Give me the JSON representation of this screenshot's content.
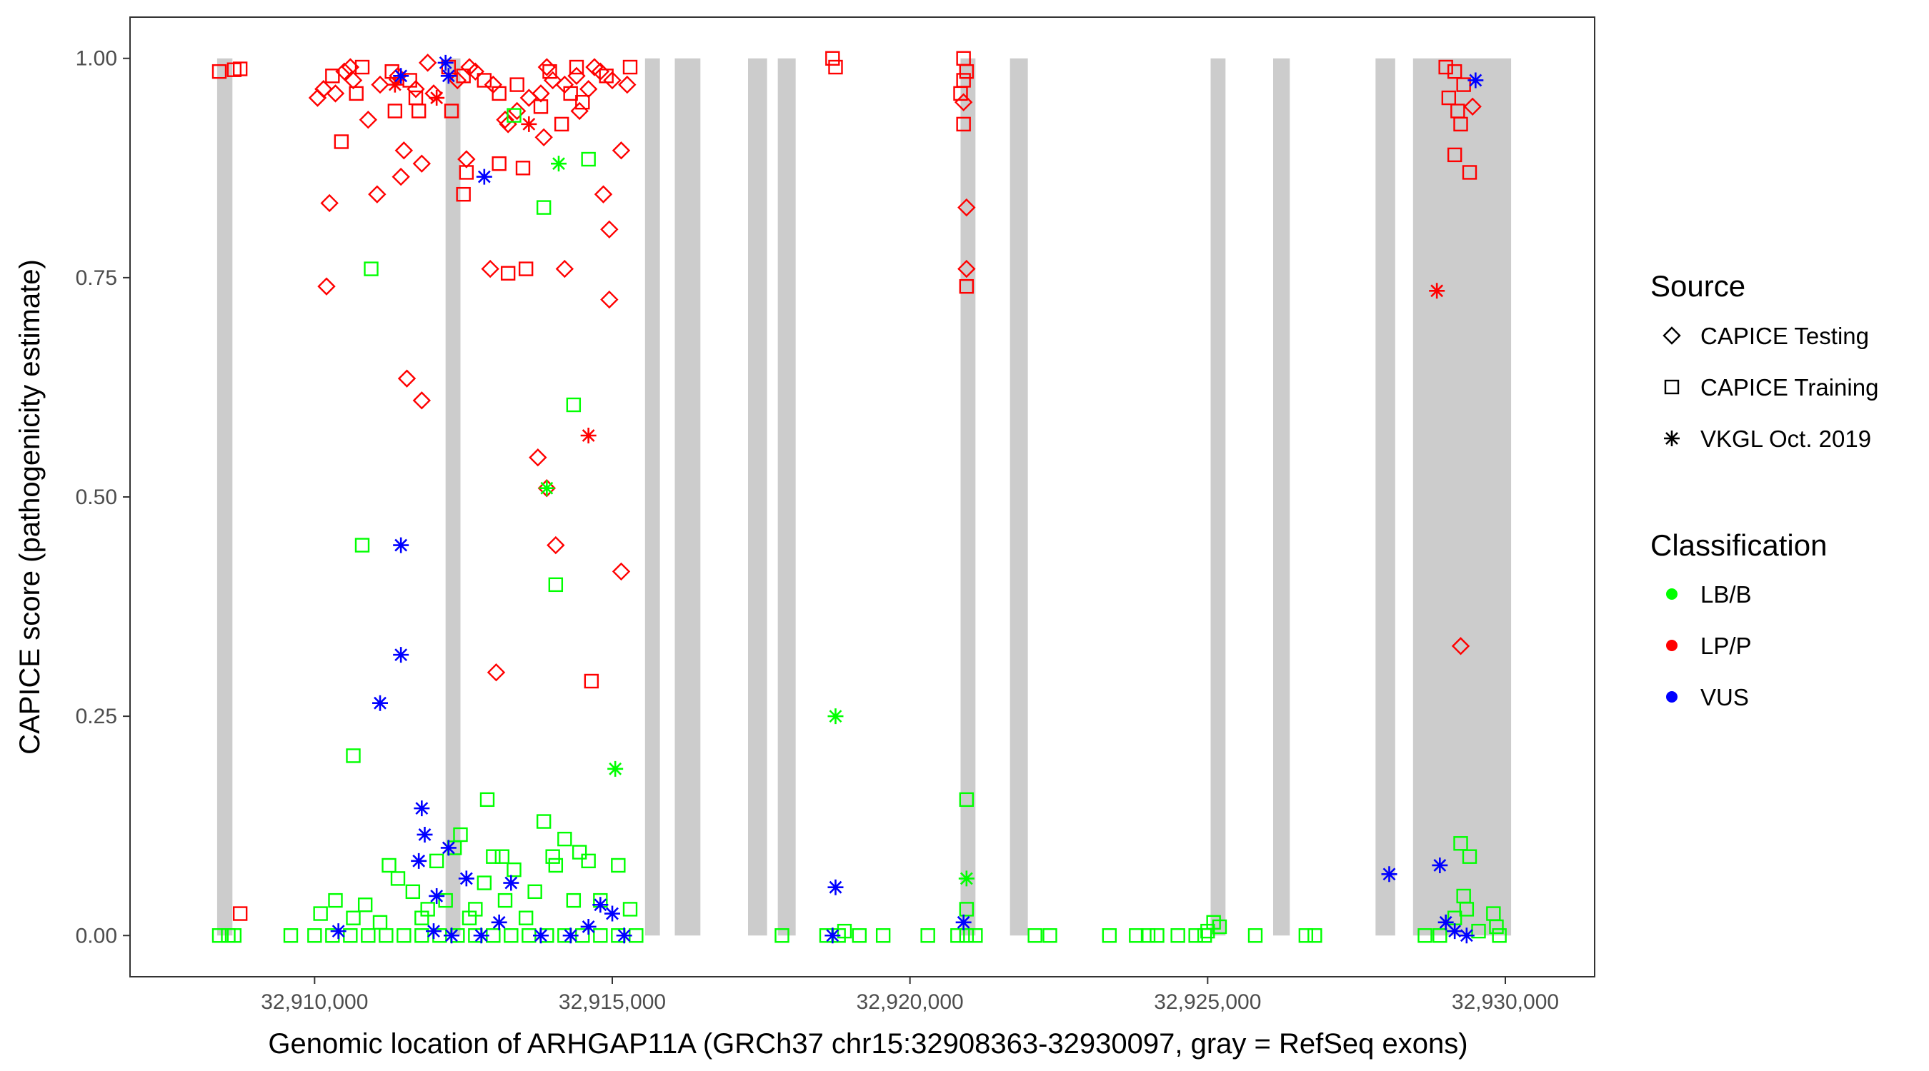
{
  "chart_data": {
    "type": "scatter",
    "title": "",
    "xlabel": "Genomic location of ARHGAP11A (GRCh37 chr15:32908363-32930097, gray = RefSeq exons)",
    "ylabel": "CAPICE score (pathogenicity estimate)",
    "xlim": [
      32906900,
      32931500
    ],
    "ylim": [
      -0.047,
      1.047
    ],
    "x_ticks": [
      32910000,
      32915000,
      32920000,
      32925000,
      32930000
    ],
    "x_tick_labels": [
      "32,910,000",
      "32,915,000",
      "32,920,000",
      "32,925,000",
      "32,930,000"
    ],
    "y_ticks": [
      0,
      0.25,
      0.5,
      0.75,
      1
    ],
    "y_tick_labels": [
      "0.00",
      "0.25",
      "0.50",
      "0.75",
      "1.00"
    ],
    "grid": false,
    "exons": [
      [
        32908363,
        32908620
      ],
      [
        32912200,
        32912450
      ],
      [
        32915550,
        32915800
      ],
      [
        32916050,
        32916480
      ],
      [
        32917280,
        32917600
      ],
      [
        32917780,
        32918080
      ],
      [
        32920850,
        32921100
      ],
      [
        32921680,
        32921980
      ],
      [
        32925050,
        32925300
      ],
      [
        32926100,
        32926380
      ],
      [
        32927820,
        32928150
      ],
      [
        32928450,
        32930097
      ]
    ],
    "legend": {
      "position": "right",
      "source_title": "Source",
      "source_items": [
        {
          "label": "CAPICE Testing",
          "shape": "diamond"
        },
        {
          "label": "CAPICE Training",
          "shape": "square"
        },
        {
          "label": "VKGL Oct. 2019",
          "shape": "asterisk"
        }
      ],
      "class_title": "Classification",
      "class_items": [
        {
          "label": "LB/B",
          "color": "#00ff00"
        },
        {
          "label": "LP/P",
          "color": "#ff0000"
        },
        {
          "label": "VUS",
          "color": "#0000ff"
        }
      ]
    },
    "colors": {
      "LB/B": "#00ff00",
      "LP/P": "#ff0000",
      "VUS": "#0000ff",
      "exon": "#cccccc"
    },
    "series": [
      {
        "source": "CAPICE Testing",
        "classification": "LP/P",
        "points": [
          [
            32910050,
            0.955
          ],
          [
            32910150,
            0.965
          ],
          [
            32910350,
            0.96
          ],
          [
            32910500,
            0.985
          ],
          [
            32910650,
            0.975
          ],
          [
            32910900,
            0.93
          ],
          [
            32911100,
            0.97
          ],
          [
            32911400,
            0.98
          ],
          [
            32911700,
            0.965
          ],
          [
            32912000,
            0.96
          ],
          [
            32912400,
            0.975
          ],
          [
            32912700,
            0.985
          ],
          [
            32913000,
            0.97
          ],
          [
            32913200,
            0.93
          ],
          [
            32913400,
            0.94
          ],
          [
            32913600,
            0.955
          ],
          [
            32913800,
            0.96
          ],
          [
            32914000,
            0.975
          ],
          [
            32914200,
            0.97
          ],
          [
            32914400,
            0.98
          ],
          [
            32914600,
            0.965
          ],
          [
            32914800,
            0.985
          ],
          [
            32915000,
            0.975
          ],
          [
            32915250,
            0.97
          ],
          [
            32910600,
            0.99
          ],
          [
            32911900,
            0.995
          ],
          [
            32912600,
            0.99
          ],
          [
            32913900,
            0.99
          ],
          [
            32914700,
            0.99
          ],
          [
            32913850,
            0.91
          ],
          [
            32913250,
            0.925
          ],
          [
            32914450,
            0.94
          ],
          [
            32911500,
            0.895
          ],
          [
            32911450,
            0.865
          ],
          [
            32911800,
            0.88
          ],
          [
            32912550,
            0.885
          ],
          [
            32915150,
            0.895
          ],
          [
            32910250,
            0.835
          ],
          [
            32911050,
            0.845
          ],
          [
            32914850,
            0.845
          ],
          [
            32914950,
            0.805
          ],
          [
            32910200,
            0.74
          ],
          [
            32912950,
            0.76
          ],
          [
            32914200,
            0.76
          ],
          [
            32914950,
            0.725
          ],
          [
            32911550,
            0.635
          ],
          [
            32911800,
            0.61
          ],
          [
            32913750,
            0.545
          ],
          [
            32913900,
            0.51
          ],
          [
            32914050,
            0.445
          ],
          [
            32915150,
            0.415
          ],
          [
            32913050,
            0.3
          ],
          [
            32920900,
            0.95
          ],
          [
            32920950,
            0.83
          ],
          [
            32920950,
            0.76
          ],
          [
            32929450,
            0.945
          ],
          [
            32929250,
            0.33
          ]
        ]
      },
      {
        "source": "CAPICE Training",
        "classification": "LP/P",
        "points": [
          [
            32908400,
            0.985
          ],
          [
            32908650,
            0.987
          ],
          [
            32908750,
            0.988
          ],
          [
            32908750,
            0.025
          ],
          [
            32910300,
            0.98
          ],
          [
            32910800,
            0.99
          ],
          [
            32911300,
            0.985
          ],
          [
            32911600,
            0.975
          ],
          [
            32912250,
            0.99
          ],
          [
            32912500,
            0.98
          ],
          [
            32912850,
            0.975
          ],
          [
            32913400,
            0.97
          ],
          [
            32913950,
            0.985
          ],
          [
            32914400,
            0.99
          ],
          [
            32914900,
            0.98
          ],
          [
            32915300,
            0.99
          ],
          [
            32910700,
            0.96
          ],
          [
            32911700,
            0.955
          ],
          [
            32913100,
            0.96
          ],
          [
            32914300,
            0.96
          ],
          [
            32911750,
            0.94
          ],
          [
            32912300,
            0.94
          ],
          [
            32913800,
            0.945
          ],
          [
            32914500,
            0.95
          ],
          [
            32914150,
            0.925
          ],
          [
            32910450,
            0.905
          ],
          [
            32911350,
            0.94
          ],
          [
            32912550,
            0.87
          ],
          [
            32912500,
            0.845
          ],
          [
            32913100,
            0.88
          ],
          [
            32913500,
            0.875
          ],
          [
            32913250,
            0.755
          ],
          [
            32913550,
            0.76
          ],
          [
            32914650,
            0.29
          ],
          [
            32918700,
            1.0
          ],
          [
            32918750,
            0.99
          ],
          [
            32920900,
            1.0
          ],
          [
            32920950,
            0.985
          ],
          [
            32920900,
            0.975
          ],
          [
            32920850,
            0.96
          ],
          [
            32920900,
            0.925
          ],
          [
            32920950,
            0.74
          ],
          [
            32929000,
            0.99
          ],
          [
            32929150,
            0.985
          ],
          [
            32929300,
            0.97
          ],
          [
            32929050,
            0.955
          ],
          [
            32929200,
            0.94
          ],
          [
            32929250,
            0.925
          ],
          [
            32929150,
            0.89
          ],
          [
            32929400,
            0.87
          ]
        ]
      },
      {
        "source": "VKGL Oct. 2019",
        "classification": "LP/P",
        "points": [
          [
            32911350,
            0.97
          ],
          [
            32912050,
            0.955
          ],
          [
            32913600,
            0.925
          ],
          [
            32914600,
            0.57
          ],
          [
            32928850,
            0.735
          ]
        ]
      },
      {
        "source": "CAPICE Training",
        "classification": "LB/B",
        "points": [
          [
            32908400,
            0.0
          ],
          [
            32908550,
            0.0
          ],
          [
            32908650,
            0.0
          ],
          [
            32909600,
            0.0
          ],
          [
            32910000,
            0.0
          ],
          [
            32910300,
            0.0
          ],
          [
            32910600,
            0.0
          ],
          [
            32910900,
            0.0
          ],
          [
            32911200,
            0.0
          ],
          [
            32911500,
            0.0
          ],
          [
            32911800,
            0.0
          ],
          [
            32912100,
            0.0
          ],
          [
            32912400,
            0.0
          ],
          [
            32912700,
            0.0
          ],
          [
            32913000,
            0.0
          ],
          [
            32913300,
            0.0
          ],
          [
            32913600,
            0.0
          ],
          [
            32913900,
            0.0
          ],
          [
            32914200,
            0.0
          ],
          [
            32914500,
            0.0
          ],
          [
            32914800,
            0.0
          ],
          [
            32915100,
            0.0
          ],
          [
            32915400,
            0.0
          ],
          [
            32910100,
            0.025
          ],
          [
            32910350,
            0.04
          ],
          [
            32910650,
            0.02
          ],
          [
            32910850,
            0.035
          ],
          [
            32911100,
            0.015
          ],
          [
            32911250,
            0.08
          ],
          [
            32911400,
            0.065
          ],
          [
            32911650,
            0.05
          ],
          [
            32911800,
            0.02
          ],
          [
            32911900,
            0.03
          ],
          [
            32912050,
            0.085
          ],
          [
            32912200,
            0.04
          ],
          [
            32912350,
            0.1
          ],
          [
            32912450,
            0.115
          ],
          [
            32912700,
            0.03
          ],
          [
            32912850,
            0.06
          ],
          [
            32913000,
            0.09
          ],
          [
            32913150,
            0.09
          ],
          [
            32913200,
            0.04
          ],
          [
            32913350,
            0.075
          ],
          [
            32913550,
            0.02
          ],
          [
            32913700,
            0.05
          ],
          [
            32913850,
            0.13
          ],
          [
            32914000,
            0.09
          ],
          [
            32914050,
            0.08
          ],
          [
            32914200,
            0.11
          ],
          [
            32914350,
            0.04
          ],
          [
            32914450,
            0.095
          ],
          [
            32914600,
            0.085
          ],
          [
            32914800,
            0.04
          ],
          [
            32915100,
            0.08
          ],
          [
            32915300,
            0.03
          ],
          [
            32912900,
            0.155
          ],
          [
            32910650,
            0.205
          ],
          [
            32910800,
            0.445
          ],
          [
            32914050,
            0.4
          ],
          [
            32914350,
            0.605
          ],
          [
            32910950,
            0.76
          ],
          [
            32913850,
            0.83
          ],
          [
            32914600,
            0.885
          ],
          [
            32913350,
            0.935
          ],
          [
            32912600,
            0.02
          ],
          [
            32917850,
            0.0
          ],
          [
            32918600,
            0.0
          ],
          [
            32918800,
            0.0
          ],
          [
            32918900,
            0.005
          ],
          [
            32919150,
            0.0
          ],
          [
            32919550,
            0.0
          ],
          [
            32920300,
            0.0
          ],
          [
            32920800,
            0.0
          ],
          [
            32920950,
            0.0
          ],
          [
            32921100,
            0.0
          ],
          [
            32920950,
            0.03
          ],
          [
            32920950,
            0.155
          ],
          [
            32922100,
            0.0
          ],
          [
            32922350,
            0.0
          ],
          [
            32923350,
            0.0
          ],
          [
            32923800,
            0.0
          ],
          [
            32924000,
            0.0
          ],
          [
            32924150,
            0.0
          ],
          [
            32924500,
            0.0
          ],
          [
            32924800,
            0.0
          ],
          [
            32924950,
            0.0
          ],
          [
            32925100,
            0.015
          ],
          [
            32925200,
            0.01
          ],
          [
            32925000,
            0.005
          ],
          [
            32925800,
            0.0
          ],
          [
            32926650,
            0.0
          ],
          [
            32926800,
            0.0
          ],
          [
            32928650,
            0.0
          ],
          [
            32928900,
            0.0
          ],
          [
            32929150,
            0.02
          ],
          [
            32929300,
            0.045
          ],
          [
            32929350,
            0.03
          ],
          [
            32929400,
            0.09
          ],
          [
            32929250,
            0.105
          ],
          [
            32929550,
            0.005
          ],
          [
            32929800,
            0.025
          ],
          [
            32929900,
            0.0
          ],
          [
            32929850,
            0.01
          ]
        ]
      },
      {
        "source": "VKGL Oct. 2019",
        "classification": "LB/B",
        "points": [
          [
            32914100,
            0.88
          ],
          [
            32913900,
            0.51
          ],
          [
            32915050,
            0.19
          ],
          [
            32918750,
            0.25
          ],
          [
            32920950,
            0.065
          ]
        ]
      },
      {
        "source": "VKGL Oct. 2019",
        "classification": "VUS",
        "points": [
          [
            32911450,
            0.98
          ],
          [
            32912250,
            0.98
          ],
          [
            32912200,
            0.995
          ],
          [
            32912850,
            0.865
          ],
          [
            32911450,
            0.445
          ],
          [
            32911450,
            0.32
          ],
          [
            32911100,
            0.265
          ],
          [
            32911800,
            0.145
          ],
          [
            32911850,
            0.115
          ],
          [
            32911750,
            0.085
          ],
          [
            32912250,
            0.1
          ],
          [
            32912050,
            0.045
          ],
          [
            32912550,
            0.065
          ],
          [
            32913300,
            0.06
          ],
          [
            32914800,
            0.035
          ],
          [
            32915000,
            0.025
          ],
          [
            32910400,
            0.005
          ],
          [
            32912000,
            0.005
          ],
          [
            32912300,
            0.0
          ],
          [
            32912800,
            0.0
          ],
          [
            32913100,
            0.015
          ],
          [
            32913800,
            0.0
          ],
          [
            32914300,
            0.0
          ],
          [
            32914600,
            0.01
          ],
          [
            32915200,
            0.0
          ],
          [
            32918750,
            0.055
          ],
          [
            32918700,
            0.0
          ],
          [
            32920900,
            0.015
          ],
          [
            32928050,
            0.07
          ],
          [
            32928900,
            0.08
          ],
          [
            32929000,
            0.015
          ],
          [
            32929150,
            0.005
          ],
          [
            32929350,
            0.0
          ],
          [
            32929500,
            0.975
          ]
        ]
      }
    ]
  }
}
